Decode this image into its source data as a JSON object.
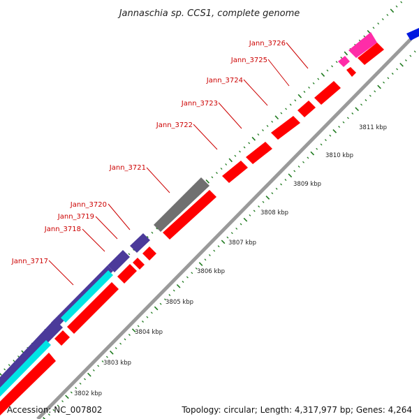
{
  "title": "Jannaschia sp. CCS1, complete genome",
  "accession": "Accession: NC_007802",
  "topology": "Topology: circular; Length: 4,317,977 bp; Genes: 4,264",
  "colors": {
    "cds_forward": "#ff0000",
    "cds_reverse": "#4b3a9a",
    "cds_alt": "#00e5e5",
    "pseudo": "#707070",
    "rna": "#ff2ca8",
    "blue_feature": "#0018e0",
    "backbone": "#9a9a9a",
    "tick": "#1e7a1e",
    "label": "#cc0000"
  },
  "gene_labels": [
    "Jann_3717",
    "Jann_3718",
    "Jann_3719",
    "Jann_3720",
    "Jann_3721",
    "Jann_3722",
    "Jann_3723",
    "Jann_3724",
    "Jann_3725",
    "Jann_3726"
  ],
  "kbp_labels": [
    "3802 kbp",
    "3803 kbp",
    "3804 kbp",
    "3805 kbp",
    "3806 kbp",
    "3807 kbp",
    "3808 kbp",
    "3809 kbp",
    "3810 kbp",
    "3811 kbp"
  ]
}
